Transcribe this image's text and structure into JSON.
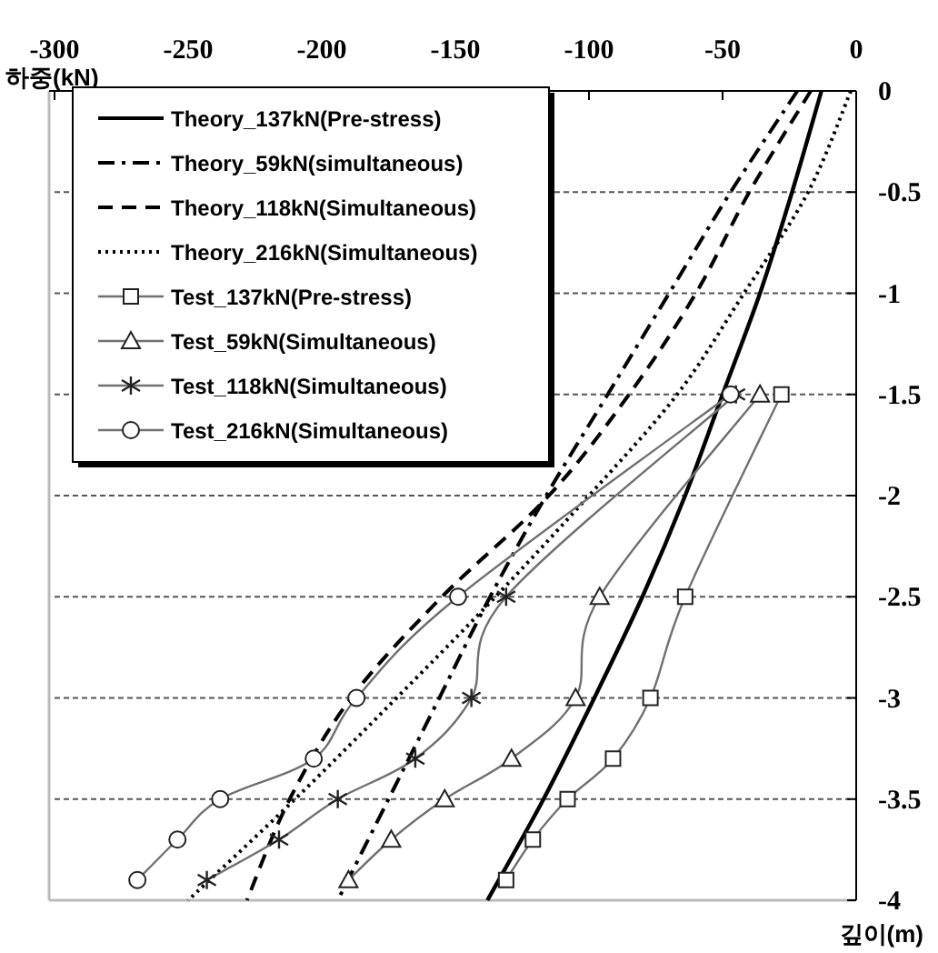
{
  "chart_data": {
    "type": "line",
    "xlabel": "하중(kN)",
    "ylabel": "깊이(m)",
    "xlim": [
      -300,
      0
    ],
    "xticks": [
      -300,
      -250,
      -200,
      -150,
      -100,
      -50,
      0
    ],
    "ylim": [
      -4,
      0
    ],
    "yticks": [
      -4,
      -3.5,
      -3,
      -2.5,
      -2,
      -1.5,
      -1,
      -0.5,
      0
    ],
    "grid": "y",
    "legend": "top left",
    "series": [
      {
        "name": "Theory_137kN(Pre-stress)",
        "color": "#000000",
        "line_style": "solid",
        "marker": "none",
        "x": [
          -13,
          -24,
          -36,
          -50,
          -64,
          -80,
          -98,
          -117,
          -138
        ],
        "values": [
          0,
          -0.5,
          -1,
          -1.5,
          -2,
          -2.5,
          -3,
          -3.5,
          -4
        ]
      },
      {
        "name": "Theory_59kN(simultaneous)",
        "color": "#000000",
        "line_style": "dashdot",
        "marker": "none",
        "x": [
          -22,
          -47,
          -70,
          -93,
          -116,
          -137,
          -156,
          -175,
          -194
        ],
        "values": [
          0,
          -0.5,
          -1,
          -1.5,
          -2,
          -2.5,
          -3,
          -3.5,
          -4
        ]
      },
      {
        "name": "Theory_118kN(Simultaneous)",
        "color": "#000000",
        "line_style": "dashed",
        "marker": "none",
        "x": [
          -17,
          -40,
          -60,
          -85,
          -115,
          -155,
          -189,
          -212,
          -228
        ],
        "values": [
          0,
          -0.5,
          -1,
          -1.5,
          -2,
          -2.5,
          -3,
          -3.5,
          -4
        ]
      },
      {
        "name": "Theory_216kN(Simultaneous)",
        "color": "#000000",
        "line_style": "dotted",
        "marker": "none",
        "x": [
          -2,
          -18,
          -42,
          -67,
          -100,
          -135,
          -172,
          -210,
          -250
        ],
        "values": [
          0,
          -0.5,
          -1,
          -1.5,
          -2,
          -2.5,
          -3,
          -3.5,
          -4
        ]
      },
      {
        "name": "Test_137kN(Pre-stress)",
        "color": "#707070",
        "line_style": "solid",
        "marker": "square",
        "x": [
          -28,
          -64,
          -77,
          -91,
          -108,
          -121,
          -131
        ],
        "values": [
          -1.5,
          -2.5,
          -3,
          -3.3,
          -3.5,
          -3.7,
          -3.9
        ]
      },
      {
        "name": "Test_59kN(Simultaneous)",
        "color": "#707070",
        "line_style": "solid",
        "marker": "triangle",
        "x": [
          -36,
          -96,
          -105,
          -129,
          -154,
          -174,
          -190
        ],
        "values": [
          -1.5,
          -2.5,
          -3,
          -3.3,
          -3.5,
          -3.7,
          -3.9
        ]
      },
      {
        "name": "Test_118kN(Simultaneous)",
        "color": "#707070",
        "line_style": "solid",
        "marker": "cross",
        "x": [
          -45,
          -131,
          -144,
          -165,
          -194,
          -216,
          -243
        ],
        "values": [
          -1.5,
          -2.5,
          -3,
          -3.3,
          -3.5,
          -3.7,
          -3.9
        ]
      },
      {
        "name": "Test_216kN(Simultaneous)",
        "color": "#707070",
        "line_style": "solid",
        "marker": "circle",
        "x": [
          -47,
          -149,
          -187,
          -203,
          -238,
          -254,
          -269
        ],
        "values": [
          -1.5,
          -2.5,
          -3,
          -3.3,
          -3.5,
          -3.7,
          -3.9
        ]
      }
    ]
  }
}
